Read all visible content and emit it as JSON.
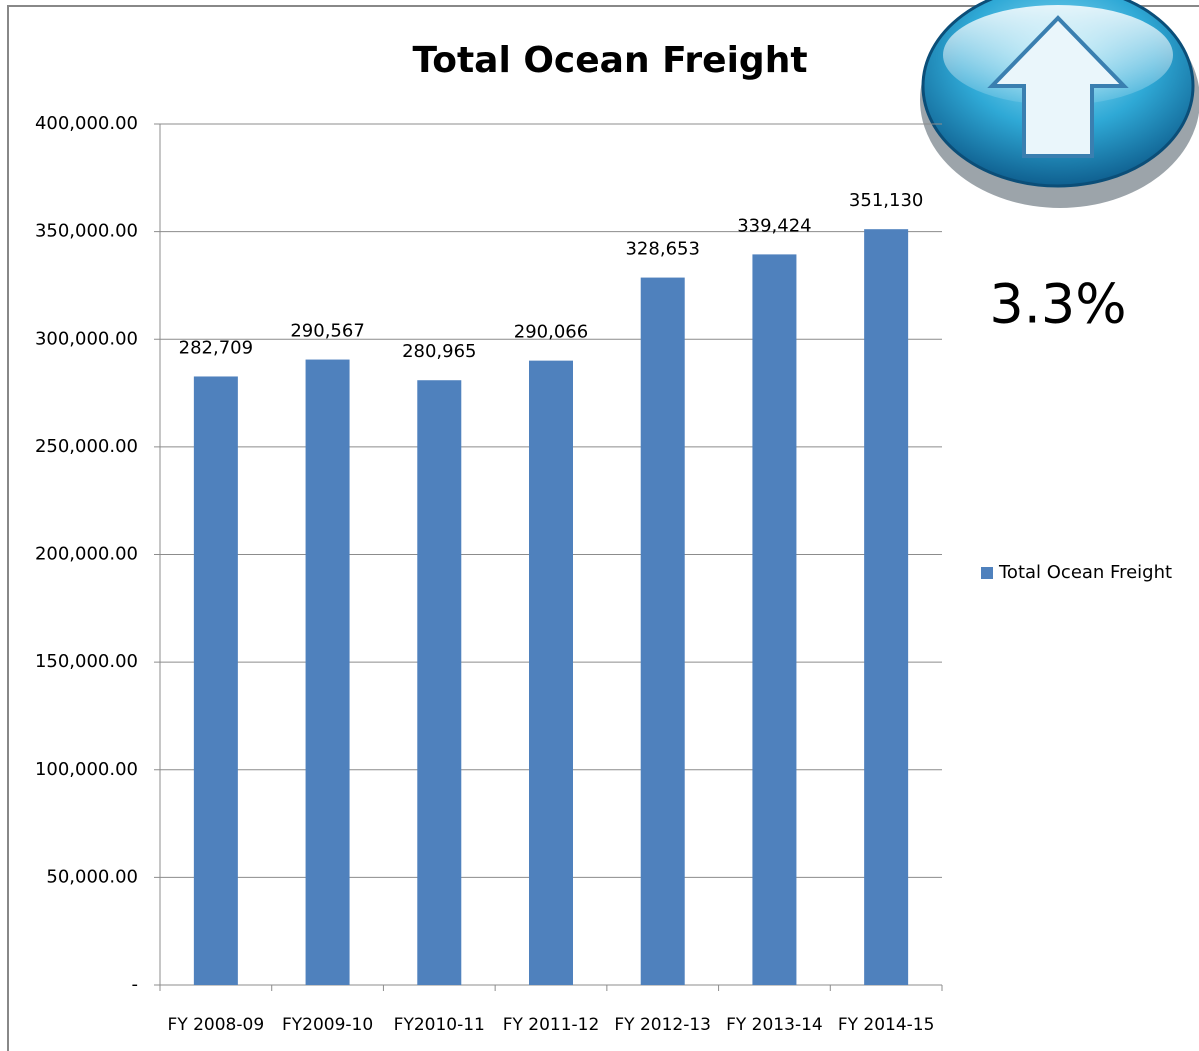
{
  "chart_data": {
    "type": "bar",
    "title": "Total Ocean Freight",
    "annotation": "3.3%",
    "categories": [
      "FY 2008-09",
      "FY2009-10",
      "FY2010-11",
      "FY 2011-12",
      "FY 2012-13",
      "FY 2013-14",
      "FY 2014-15"
    ],
    "series": [
      {
        "name": "Total Ocean Freight",
        "color": "#4f81bd",
        "values": [
          282709,
          290567,
          280965,
          290066,
          328653,
          339424,
          351130
        ],
        "value_labels": [
          "282,709",
          "290,567",
          "280,965",
          "290,066",
          "328,653",
          "339,424",
          "351,130"
        ]
      }
    ],
    "ylim": [
      0,
      400000
    ],
    "yticks": [
      {
        "value": 0,
        "label": "-"
      },
      {
        "value": 50000,
        "label": "50,000.00"
      },
      {
        "value": 100000,
        "label": "100,000.00"
      },
      {
        "value": 150000,
        "label": "150,000.00"
      },
      {
        "value": 200000,
        "label": "200,000.00"
      },
      {
        "value": 250000,
        "label": "250,000.00"
      },
      {
        "value": 300000,
        "label": "300,000.00"
      },
      {
        "value": 350000,
        "label": "350,000.00"
      },
      {
        "value": 400000,
        "label": "400,000.00"
      }
    ],
    "grid": true,
    "legend": "right"
  }
}
